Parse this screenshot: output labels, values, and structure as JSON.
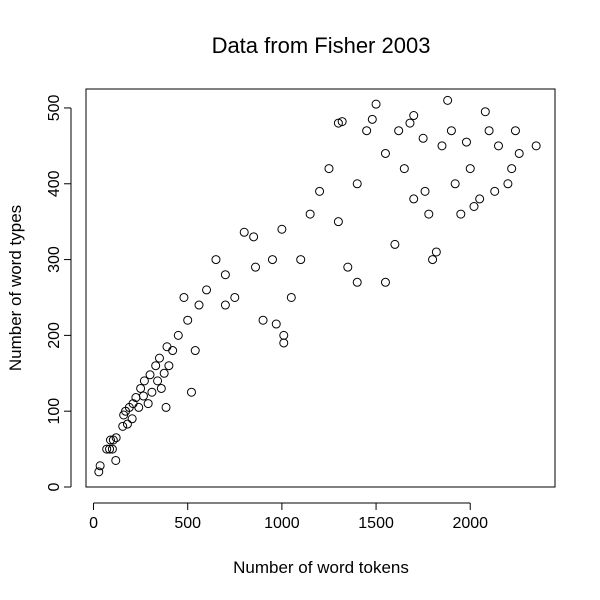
{
  "chart_data": {
    "type": "scatter",
    "title": "Data from Fisher 2003",
    "xlabel": "Number of word tokens",
    "ylabel": "Number of word types",
    "xlim": [
      -40,
      2450
    ],
    "ylim": [
      0,
      525
    ],
    "xticks": [
      0,
      500,
      1000,
      1500,
      2000
    ],
    "yticks": [
      0,
      100,
      200,
      300,
      400,
      500
    ],
    "marker": "open-circle",
    "color": "#000000",
    "grid": false,
    "frame": true,
    "series": [
      {
        "points": [
          [
            28,
            20
          ],
          [
            35,
            28
          ],
          [
            70,
            50
          ],
          [
            85,
            50
          ],
          [
            90,
            62
          ],
          [
            100,
            50
          ],
          [
            105,
            62
          ],
          [
            118,
            35
          ],
          [
            120,
            65
          ],
          [
            155,
            80
          ],
          [
            160,
            95
          ],
          [
            170,
            100
          ],
          [
            180,
            83
          ],
          [
            190,
            105
          ],
          [
            205,
            90
          ],
          [
            210,
            110
          ],
          [
            225,
            118
          ],
          [
            240,
            105
          ],
          [
            250,
            130
          ],
          [
            265,
            120
          ],
          [
            270,
            140
          ],
          [
            290,
            110
          ],
          [
            300,
            148
          ],
          [
            310,
            125
          ],
          [
            330,
            160
          ],
          [
            340,
            140
          ],
          [
            350,
            170
          ],
          [
            360,
            130
          ],
          [
            375,
            150
          ],
          [
            385,
            105
          ],
          [
            390,
            185
          ],
          [
            400,
            160
          ],
          [
            420,
            180
          ],
          [
            450,
            200
          ],
          [
            480,
            250
          ],
          [
            500,
            220
          ],
          [
            520,
            125
          ],
          [
            540,
            180
          ],
          [
            560,
            240
          ],
          [
            600,
            260
          ],
          [
            650,
            300
          ],
          [
            700,
            280
          ],
          [
            700,
            240
          ],
          [
            750,
            250
          ],
          [
            800,
            336
          ],
          [
            850,
            330
          ],
          [
            860,
            290
          ],
          [
            900,
            220
          ],
          [
            950,
            300
          ],
          [
            970,
            215
          ],
          [
            1000,
            340
          ],
          [
            1010,
            200
          ],
          [
            1010,
            190
          ],
          [
            1050,
            250
          ],
          [
            1100,
            300
          ],
          [
            1150,
            360
          ],
          [
            1200,
            390
          ],
          [
            1250,
            420
          ],
          [
            1300,
            480
          ],
          [
            1320,
            482
          ],
          [
            1300,
            350
          ],
          [
            1350,
            290
          ],
          [
            1400,
            270
          ],
          [
            1400,
            400
          ],
          [
            1450,
            470
          ],
          [
            1480,
            485
          ],
          [
            1500,
            505
          ],
          [
            1550,
            270
          ],
          [
            1550,
            440
          ],
          [
            1600,
            320
          ],
          [
            1620,
            470
          ],
          [
            1650,
            420
          ],
          [
            1680,
            480
          ],
          [
            1700,
            490
          ],
          [
            1700,
            380
          ],
          [
            1750,
            460
          ],
          [
            1760,
            390
          ],
          [
            1780,
            360
          ],
          [
            1800,
            300
          ],
          [
            1820,
            310
          ],
          [
            1850,
            450
          ],
          [
            1880,
            510
          ],
          [
            1900,
            470
          ],
          [
            1920,
            400
          ],
          [
            1950,
            360
          ],
          [
            1980,
            455
          ],
          [
            2000,
            420
          ],
          [
            2020,
            370
          ],
          [
            2050,
            380
          ],
          [
            2080,
            495
          ],
          [
            2100,
            470
          ],
          [
            2130,
            390
          ],
          [
            2150,
            450
          ],
          [
            2200,
            400
          ],
          [
            2220,
            420
          ],
          [
            2240,
            470
          ],
          [
            2260,
            440
          ],
          [
            2350,
            450
          ]
        ]
      }
    ]
  }
}
